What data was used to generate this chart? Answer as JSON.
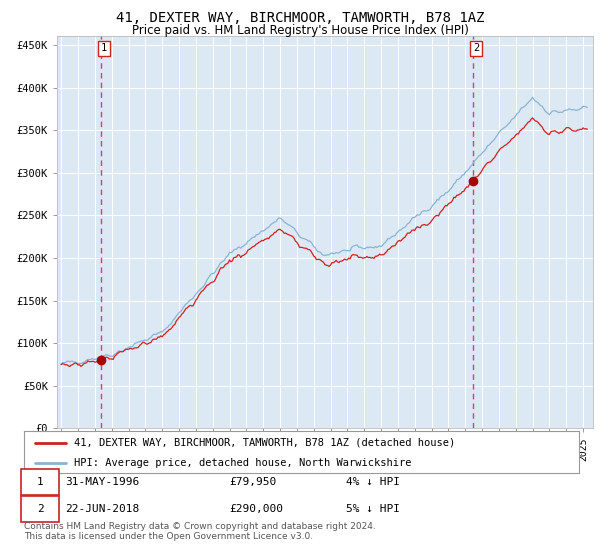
{
  "title": "41, DEXTER WAY, BIRCHMOOR, TAMWORTH, B78 1AZ",
  "subtitle": "Price paid vs. HM Land Registry's House Price Index (HPI)",
  "bg_color": "#ffffff",
  "plot_bg_color": "#dce9f5",
  "line_color_hpi": "#8ab4d4",
  "line_color_price": "#cc2222",
  "marker_color": "#aa0000",
  "dashed_color": "#dd4444",
  "ylim": [
    0,
    460000
  ],
  "ytick_values": [
    0,
    50000,
    100000,
    150000,
    200000,
    250000,
    300000,
    350000,
    400000,
    450000
  ],
  "sale1_year": 1996,
  "sale1_month": 5,
  "sale1_price": 79950,
  "sale2_year": 2018,
  "sale2_month": 6,
  "sale2_price": 290000,
  "legend_entry1": "41, DEXTER WAY, BIRCHMOOR, TAMWORTH, B78 1AZ (detached house)",
  "legend_entry2": "HPI: Average price, detached house, North Warwickshire",
  "footer": "Contains HM Land Registry data © Crown copyright and database right 2024.\nThis data is licensed under the Open Government Licence v3.0."
}
